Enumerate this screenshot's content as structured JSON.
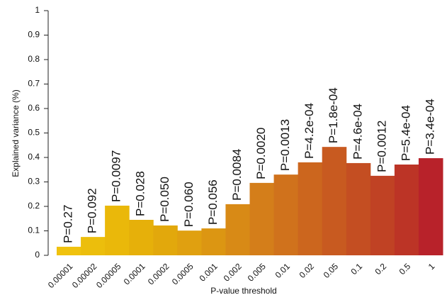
{
  "chart_data": {
    "type": "bar",
    "x_label": "P-value threshold",
    "y_label": "Explained variance (%)",
    "categories": [
      "0.00001",
      "0.00002",
      "0.00005",
      "0.0001",
      "0.0002",
      "0.0005",
      "0.001",
      "0.002",
      "0.005",
      "0.01",
      "0.02",
      "0.05",
      "0.1",
      "0.2",
      "0.5",
      "1"
    ],
    "values": [
      0.035,
      0.075,
      0.203,
      0.145,
      0.122,
      0.101,
      0.11,
      0.209,
      0.296,
      0.33,
      0.38,
      0.443,
      0.377,
      0.325,
      0.371,
      0.397
    ],
    "p_value_labels": [
      "P=0.27",
      "P=0.092",
      "P=0.0097",
      "P=0.028",
      "P=0.050",
      "P=0.060",
      "P=0.056",
      "P=0.0084",
      "P=0.0020",
      "P=0.0013",
      "P=4.2e-04",
      "P=1.8e-04",
      "P=4.6e-04",
      "P=0.0012",
      "P=5.4e-04",
      "P=3.4e-04"
    ],
    "colors": [
      "#f0c20e",
      "#ecbe0c",
      "#eab80a",
      "#e6b00a",
      "#e2a80c",
      "#e0a010",
      "#dc9612",
      "#d88a16",
      "#d47e1a",
      "#d0721c",
      "#cc661e",
      "#c85a20",
      "#c44e22",
      "#c04224",
      "#bc3426",
      "#b8222a"
    ],
    "ylim": [
      0,
      1
    ],
    "yticks": [
      0,
      0.1,
      0.2,
      0.3,
      0.4,
      0.5,
      0.6,
      0.7,
      0.8,
      0.9,
      1
    ]
  }
}
